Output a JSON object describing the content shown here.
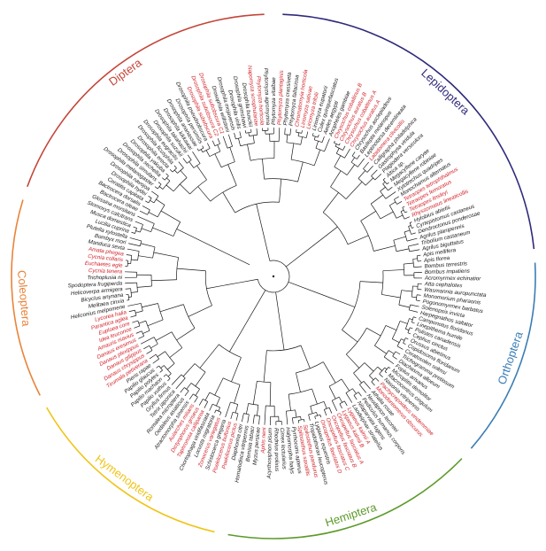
{
  "colors": {
    "highlight": "#d2232a",
    "normal": "#1a1a1a",
    "branch": "#1a1a1a"
  },
  "orders": [
    {
      "label": "Diptera",
      "color": "#c4453a"
    },
    {
      "label": "Lepidoptera",
      "color": "#2e2a7a"
    },
    {
      "label": "Orthoptera",
      "color": "#3a7db5"
    },
    {
      "label": "Hemiptera",
      "color": "#5c9a2a"
    },
    {
      "label": "Hymenoptera",
      "color": "#f0c419"
    },
    {
      "label": "Coleoptera",
      "color": "#e8843b"
    }
  ],
  "tips": [
    {
      "name": "Drosophila melanogaster",
      "hl": false
    },
    {
      "name": "Drosophila simulans",
      "hl": false
    },
    {
      "name": "Drosophila sechellia",
      "hl": false
    },
    {
      "name": "Drosophila yakuba",
      "hl": false
    },
    {
      "name": "Drosophila erecta",
      "hl": false
    },
    {
      "name": "Drosophila ficusphila",
      "hl": false
    },
    {
      "name": "Drosophila eugracilis",
      "hl": false
    },
    {
      "name": "Drosophila suzukii",
      "hl": false
    },
    {
      "name": "Drosophila takahashii",
      "hl": false
    },
    {
      "name": "Drosophila kikkawai",
      "hl": false
    },
    {
      "name": "Drosophila ananassae",
      "hl": false
    },
    {
      "name": "Drosophila persimilis",
      "hl": false
    },
    {
      "name": "Drosophila pseudoobscura",
      "hl": false
    },
    {
      "name": "Drosophila subobscura",
      "hl": true
    },
    {
      "name": "Drosophila subobscura C2",
      "hl": true
    },
    {
      "name": "Drosophila subobscura C1",
      "hl": true
    },
    {
      "name": "Drosophila willistoni",
      "hl": false
    },
    {
      "name": "Drosophila mojavensis",
      "hl": false
    },
    {
      "name": "Drosophila virilis",
      "hl": false
    },
    {
      "name": "Drosophila grimshawi",
      "hl": false
    },
    {
      "name": "Drosophila busckii",
      "hl": false
    },
    {
      "name": "Napomyza scrophulariae",
      "hl": true
    },
    {
      "name": "Phytomyza horticola",
      "hl": true
    },
    {
      "name": "Phytomyza agromyzina",
      "hl": false
    },
    {
      "name": "Phytomyza vitalbae",
      "hl": false
    },
    {
      "name": "Phytomyza plantaginis",
      "hl": true
    },
    {
      "name": "Phytomyza crassiseta",
      "hl": false
    },
    {
      "name": "Phytomyza fallaciosa",
      "hl": false
    },
    {
      "name": "Chromatomyia horticola",
      "hl": true
    },
    {
      "name": "Liriomyza sativae",
      "hl": true
    },
    {
      "name": "Liriomyza trifolii",
      "hl": true
    },
    {
      "name": "Liriomyza eupatorii",
      "hl": false
    },
    {
      "name": "Culex quinquefasciatus",
      "hl": false
    },
    {
      "name": "Aedes aegypti",
      "hl": false
    },
    {
      "name": "Anopheles gambiae",
      "hl": false
    },
    {
      "name": "Chrysochus cobaltinus B",
      "hl": true
    },
    {
      "name": "Chrysochus auratus B",
      "hl": true
    },
    {
      "name": "Chrysochus cobaltinus A",
      "hl": true
    },
    {
      "name": "Chrysochus auratus A",
      "hl": true
    },
    {
      "name": "Chrysochus asclepiadeus",
      "hl": false
    },
    {
      "name": "Basilepta melanopus",
      "hl": false
    },
    {
      "name": "Leptinotarsa decemlineata",
      "hl": false
    },
    {
      "name": "Labidomera clivicollis",
      "hl": true
    },
    {
      "name": "Calligrapha philadelphica",
      "hl": false
    },
    {
      "name": "Gastrophysa viridula",
      "hl": false
    },
    {
      "name": "Plagiodera versicolora",
      "hl": false
    },
    {
      "name": "Altica sp.",
      "hl": false
    },
    {
      "name": "Megacyllene caryae",
      "hl": false
    },
    {
      "name": "Megacyllene robiniae",
      "hl": false
    },
    {
      "name": "Xylotrechus quadripes",
      "hl": false
    },
    {
      "name": "Monochamus alternatus",
      "hl": false
    },
    {
      "name": "Tetraopes tetrophthalmus",
      "hl": true
    },
    {
      "name": "Tetraopes femoratus",
      "hl": true
    },
    {
      "name": "Tetraopes linsleyi",
      "hl": true
    },
    {
      "name": "Rhyssomatus lineaticollis",
      "hl": true
    },
    {
      "name": "Hylobius abietis",
      "hl": false
    },
    {
      "name": "Cyrtepistomus castaneus",
      "hl": false
    },
    {
      "name": "Dendroctonus ponderosae",
      "hl": false
    },
    {
      "name": "Agrilus planipennis",
      "hl": false
    },
    {
      "name": "Tribolium castaneum",
      "hl": false
    },
    {
      "name": "Agrilus biguttatus",
      "hl": false
    },
    {
      "name": "Apis mellifera",
      "hl": false
    },
    {
      "name": "Apis florea",
      "hl": false
    },
    {
      "name": "Bombus terrestris",
      "hl": false
    },
    {
      "name": "Bombus impatiens",
      "hl": false
    },
    {
      "name": "Acromyrmex echinatior",
      "hl": false
    },
    {
      "name": "Atta cephalotes",
      "hl": false
    },
    {
      "name": "Wasmannia auropunctata",
      "hl": false
    },
    {
      "name": "Monomorium pharaonis",
      "hl": false
    },
    {
      "name": "Pogonomyrmex barbatus",
      "hl": false
    },
    {
      "name": "Solenopsis invicta",
      "hl": false
    },
    {
      "name": "Harpegnathos saltator",
      "hl": false
    },
    {
      "name": "Camponotus floridanus",
      "hl": false
    },
    {
      "name": "Linepithema humile",
      "hl": false
    },
    {
      "name": "Polistes canadensis",
      "hl": false
    },
    {
      "name": "Cephus cinctus",
      "hl": false
    },
    {
      "name": "Orussus abietinus",
      "hl": false
    },
    {
      "name": "Copidosoma floridanum",
      "hl": false
    },
    {
      "name": "Ceratosolen solmsi",
      "hl": false
    },
    {
      "name": "Trichogramma pretiosum",
      "hl": false
    },
    {
      "name": "Diachasma alloeum",
      "hl": false
    },
    {
      "name": "Fopius arisanus",
      "hl": false
    },
    {
      "name": "Microplitis demolitor",
      "hl": false
    },
    {
      "name": "Macrocentrus cingulum",
      "hl": false
    },
    {
      "name": "Nasonia vitripennis",
      "hl": false
    },
    {
      "name": "Pachycrepoideus vindemmiae",
      "hl": true
    },
    {
      "name": "Monodontomerus obscurus",
      "hl": true
    },
    {
      "name": "Athalia rosae",
      "hl": false
    },
    {
      "name": "Neodiprion lecontei",
      "hl": false
    },
    {
      "name": "Pediculus humanus corporis",
      "hl": false
    },
    {
      "name": "Nilaparvata lugens",
      "hl": false
    },
    {
      "name": "Laodelphax striatellus",
      "hl": false
    },
    {
      "name": "Lygaeus kalmii A",
      "hl": true
    },
    {
      "name": "Lygaeus kalmii B",
      "hl": true
    },
    {
      "name": "Oncopeltus fasciatus A",
      "hl": true
    },
    {
      "name": "Oncopeltus fasciatus B",
      "hl": true
    },
    {
      "name": "Oncopeltus fasciatus C",
      "hl": true
    },
    {
      "name": "Oncopeltus fasciatus D",
      "hl": true
    },
    {
      "name": "Lygaeus equestris",
      "hl": false
    },
    {
      "name": "Tropidothorax leucopterus",
      "hl": false
    },
    {
      "name": "Spilostethus pandurus",
      "hl": true
    },
    {
      "name": "Spilostethus saxatilis",
      "hl": true
    },
    {
      "name": "Pyrrhocoris apterus",
      "hl": false
    },
    {
      "name": "Halyomorpha halys",
      "hl": false
    },
    {
      "name": "Cimex lectularius",
      "hl": false
    },
    {
      "name": "Rhodnius prolixus",
      "hl": false
    },
    {
      "name": "Acyrthosiphon pisum",
      "hl": false
    },
    {
      "name": "Aphis nerii",
      "hl": true
    },
    {
      "name": "Myzus persicae",
      "hl": false
    },
    {
      "name": "Bemisia tabaci",
      "hl": false
    },
    {
      "name": "Homalodisca vitripennis",
      "hl": false
    },
    {
      "name": "Diaphorina citri",
      "hl": false
    },
    {
      "name": "Poekilocerus pictus",
      "hl": true
    },
    {
      "name": "Poekilocerus bufonius",
      "hl": true
    },
    {
      "name": "Schistocerca gregaria",
      "hl": false
    },
    {
      "name": "Zonocerus variegatus",
      "hl": true
    },
    {
      "name": "Locusta migratoria",
      "hl": false
    },
    {
      "name": "Chortophaga viridifasciata",
      "hl": false
    },
    {
      "name": "Taphronota calliparea",
      "hl": true
    },
    {
      "name": "Dictyophorus griseus",
      "hl": true
    },
    {
      "name": "Aularches miliaris",
      "hl": true
    },
    {
      "name": "Atractomorpha sinensis",
      "hl": false
    },
    {
      "name": "Oedaleus asiaticus",
      "hl": false
    },
    {
      "name": "Romalea microptera",
      "hl": false
    },
    {
      "name": "Tetrix japonica",
      "hl": false
    },
    {
      "name": "Gryllus firmus",
      "hl": false
    },
    {
      "name": "Papilio xuthus",
      "hl": false
    },
    {
      "name": "Papilio machaon",
      "hl": false
    },
    {
      "name": "Papilio polytes",
      "hl": false
    },
    {
      "name": "Papilio glaucus",
      "hl": false
    },
    {
      "name": "Pieris rapae",
      "hl": false
    },
    {
      "name": "Tirumala petiverana",
      "hl": true
    },
    {
      "name": "Danaus chrysippus",
      "hl": true
    },
    {
      "name": "Danaus gilippus",
      "hl": true
    },
    {
      "name": "Danaus plexippus",
      "hl": true
    },
    {
      "name": "Danaus eresimus",
      "hl": true
    },
    {
      "name": "Amauris niavius",
      "hl": true
    },
    {
      "name": "Idea leuconoe",
      "hl": true
    },
    {
      "name": "Euploea core",
      "hl": true
    },
    {
      "name": "Parantica aglea",
      "hl": true
    },
    {
      "name": "Lycorea halia",
      "hl": true
    },
    {
      "name": "Heliconius melpomene",
      "hl": false
    },
    {
      "name": "Melitaea cinxia",
      "hl": false
    },
    {
      "name": "Bicyclus anynana",
      "hl": false
    },
    {
      "name": "Helicoverpa armigera",
      "hl": false
    },
    {
      "name": "Spodoptera frugiperda",
      "hl": false
    },
    {
      "name": "Trichoplusia ni",
      "hl": false
    },
    {
      "name": "Cycnia tenera",
      "hl": true
    },
    {
      "name": "Euchaetes egle",
      "hl": true
    },
    {
      "name": "Cycnia collaris",
      "hl": true
    },
    {
      "name": "Amata phegea",
      "hl": true
    },
    {
      "name": "Manduca sexta",
      "hl": false
    },
    {
      "name": "Bombyx mori",
      "hl": false
    },
    {
      "name": "Plutella xylostella",
      "hl": false
    },
    {
      "name": "Lucilia cuprina",
      "hl": false
    },
    {
      "name": "Musca domestica",
      "hl": false
    },
    {
      "name": "Stomoxys calcitrans",
      "hl": false
    },
    {
      "name": "Glossina morsitans",
      "hl": false
    },
    {
      "name": "Bactrocera oleae",
      "hl": false
    },
    {
      "name": "Bactrocera dorsalis",
      "hl": false
    },
    {
      "name": "Ceratitis capitata",
      "hl": false
    },
    {
      "name": "Drosophila hydei",
      "hl": false
    },
    {
      "name": "Drosophila navojoa",
      "hl": false
    }
  ]
}
